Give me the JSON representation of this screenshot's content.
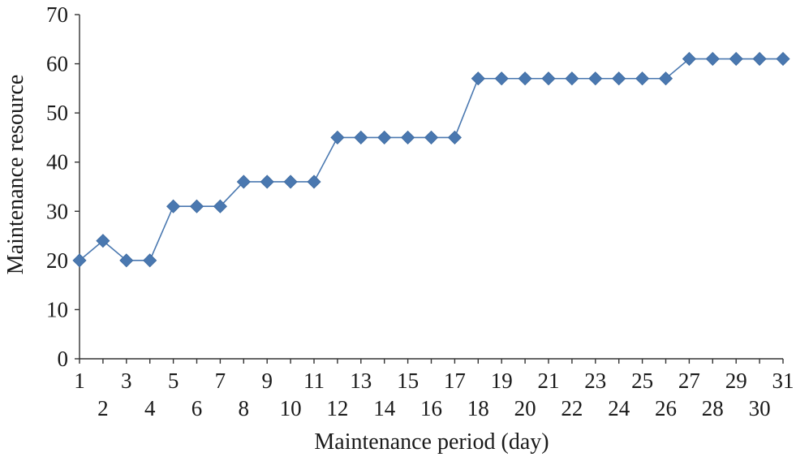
{
  "chart_data": {
    "type": "line",
    "title": "",
    "xlabel": "Maintenance period (day)",
    "ylabel": "Maintenance resource",
    "ylim": [
      0,
      70
    ],
    "yticks": [
      0,
      10,
      20,
      30,
      40,
      50,
      60,
      70
    ],
    "grid": false,
    "legend": "none",
    "x": [
      1,
      2,
      3,
      4,
      5,
      6,
      7,
      8,
      9,
      10,
      11,
      12,
      13,
      14,
      15,
      16,
      17,
      18,
      19,
      20,
      21,
      22,
      23,
      24,
      25,
      26,
      27,
      28,
      29,
      30,
      31
    ],
    "xtick_labels": [
      "1",
      "2",
      "3",
      "4",
      "5",
      "6",
      "7",
      "8",
      "9",
      "10",
      "11",
      "12",
      "13",
      "14",
      "15",
      "16",
      "17",
      "18",
      "19",
      "20",
      "21",
      "22",
      "23",
      "24",
      "25",
      "26",
      "27",
      "28",
      "29",
      "30",
      "31"
    ],
    "series": [
      {
        "color": "#4a78b0",
        "marker": "diamond",
        "values": [
          20,
          24,
          20,
          20,
          31,
          31,
          31,
          36,
          36,
          36,
          36,
          45,
          45,
          45,
          45,
          45,
          45,
          57,
          57,
          57,
          57,
          57,
          57,
          57,
          57,
          57,
          61,
          61,
          61,
          61,
          61
        ]
      }
    ]
  }
}
